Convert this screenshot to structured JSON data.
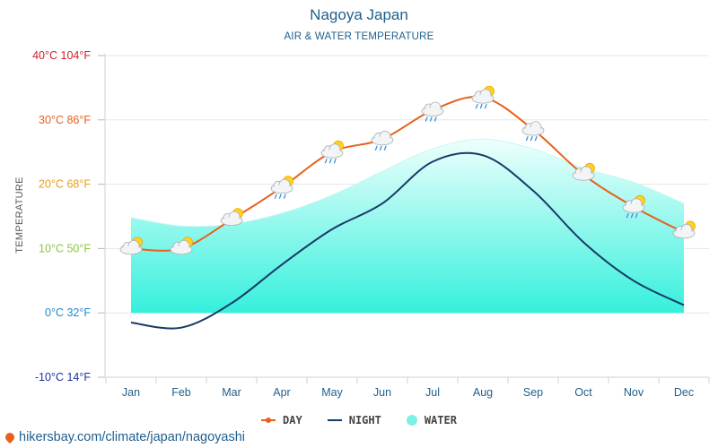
{
  "colors": {
    "day": "#e8601c",
    "night": "#173a66",
    "water": "#7df1e6",
    "title": "#1f5f8c"
  },
  "chart_data": {
    "type": "line",
    "title": "Nagoya Japan",
    "subtitle": "AIR & WATER TEMPERATURE",
    "ylabel": "TEMPERATURE",
    "xlabel": "",
    "categories": [
      "Jan",
      "Feb",
      "Mar",
      "Apr",
      "May",
      "Jun",
      "Jul",
      "Aug",
      "Sep",
      "Oct",
      "Nov",
      "Dec"
    ],
    "ylim": [
      -10,
      40
    ],
    "yticks": [
      {
        "value": 40,
        "label": "40°C 104°F",
        "color": "#d0202a"
      },
      {
        "value": 30,
        "label": "30°C 86°F",
        "color": "#e8601c"
      },
      {
        "value": 20,
        "label": "20°C 68°F",
        "color": "#e0a020"
      },
      {
        "value": 10,
        "label": "10°C 50°F",
        "color": "#8cc63f"
      },
      {
        "value": 0,
        "label": "0°C 32°F",
        "color": "#1f8ad0"
      },
      {
        "value": -10,
        "label": "-10°C 14°F",
        "color": "#2030a0"
      }
    ],
    "series": [
      {
        "name": "DAY",
        "type": "line",
        "values": [
          10,
          10,
          14.5,
          19.5,
          25,
          27,
          31.5,
          33.5,
          28.5,
          21.5,
          16.5,
          12.5
        ]
      },
      {
        "name": "NIGHT",
        "type": "line",
        "values": [
          -1.5,
          -2.3,
          1.5,
          7.5,
          13,
          17,
          23.5,
          24.5,
          19,
          11,
          5,
          1.2
        ]
      },
      {
        "name": "WATER",
        "type": "area",
        "values": [
          14.8,
          13.5,
          13.8,
          15.5,
          18.3,
          22,
          25.5,
          27,
          25.5,
          22.5,
          20.3,
          17
        ]
      }
    ],
    "weather_icons": [
      "partly-cloudy",
      "partly-cloudy",
      "partly-cloudy",
      "rain-sun",
      "rain-sun",
      "rain",
      "rain",
      "rain-sun",
      "rain",
      "partly-cloudy",
      "rain-sun",
      "partly-cloudy"
    ],
    "legend": [
      "DAY",
      "NIGHT",
      "WATER"
    ],
    "grid": true
  },
  "source": {
    "text": "hikersbay.com/climate/japan/nagoyashi"
  }
}
